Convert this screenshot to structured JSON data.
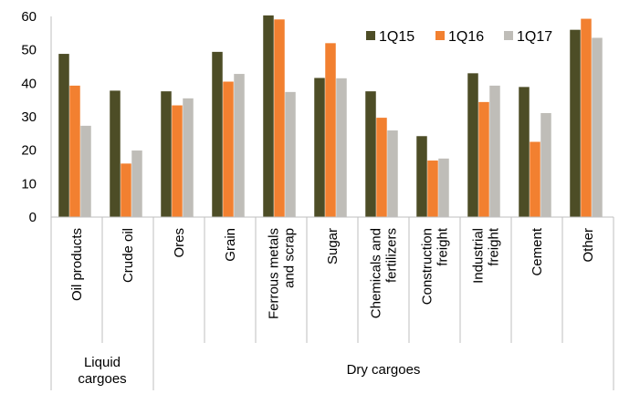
{
  "chart_data": {
    "type": "bar",
    "categories": [
      "Oil products",
      "Crude oil",
      "Ores",
      "Grain",
      "Ferrous metals and scrap",
      "Sugar",
      "Chemicals and fertilizers",
      "Construction freight",
      "Industrial freight",
      "Cement",
      "Other"
    ],
    "category_lines": [
      [
        "Oil products"
      ],
      [
        "Crude oil"
      ],
      [
        "Ores"
      ],
      [
        "Grain"
      ],
      [
        "Ferrous metals",
        "and scrap"
      ],
      [
        "Sugar"
      ],
      [
        "Chemicals and",
        "fertilizers"
      ],
      [
        "Construction",
        "freight"
      ],
      [
        "Industrial",
        "freight"
      ],
      [
        "Cement"
      ],
      [
        "Other"
      ]
    ],
    "groups": [
      {
        "lines": [
          "Liquid",
          "cargoes"
        ],
        "count": 2
      },
      {
        "lines": [
          "Dry cargoes"
        ],
        "count": 9
      }
    ],
    "series": [
      {
        "name": "1Q15",
        "color": "#4d4d26",
        "values": [
          48.8,
          37.8,
          37.6,
          49.4,
          60.3,
          41.6,
          37.6,
          24.2,
          43.0,
          38.9,
          56.0
        ]
      },
      {
        "name": "1Q16",
        "color": "#f28030",
        "values": [
          39.3,
          16.0,
          33.4,
          40.5,
          59.1,
          52.0,
          29.7,
          16.9,
          34.4,
          22.5,
          59.3
        ]
      },
      {
        "name": "1Q17",
        "color": "#bfbdb8",
        "values": [
          27.3,
          19.9,
          35.5,
          42.8,
          37.4,
          41.5,
          25.9,
          17.5,
          39.3,
          31.1,
          53.6
        ]
      }
    ],
    "yticks": [
      0,
      10,
      20,
      30,
      40,
      50,
      60
    ],
    "ylim": [
      0,
      60
    ],
    "legend_position": "top-right",
    "grid": false
  }
}
